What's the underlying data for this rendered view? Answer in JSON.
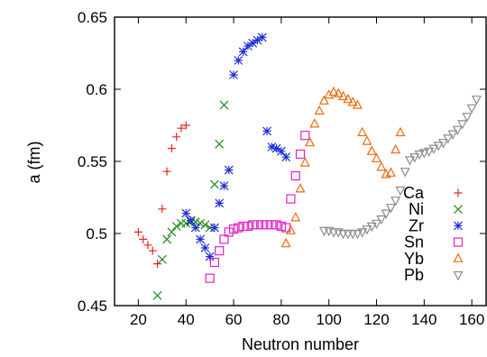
{
  "chart_data": {
    "type": "scatter",
    "xlabel": "Neutron number",
    "ylabel": "a (fm)",
    "xlim": [
      10,
      166
    ],
    "ylim": [
      0.45,
      0.65
    ],
    "x_ticks": [
      20,
      40,
      60,
      80,
      100,
      120,
      140,
      160
    ],
    "y_ticks": [
      0.45,
      0.5,
      0.55,
      0.6,
      0.65
    ],
    "x_tick_labels": [
      "20",
      "40",
      "60",
      "80",
      "100",
      "120",
      "140",
      "160"
    ],
    "y_tick_labels": [
      "0.45",
      "0.5",
      "0.55",
      "0.6",
      "0.65"
    ],
    "grid": false,
    "legend_position": "right",
    "series": [
      {
        "name": "Ca",
        "color": "#e8251f",
        "marker": "plus",
        "points": [
          [
            20,
            0.501
          ],
          [
            22,
            0.496
          ],
          [
            24,
            0.492
          ],
          [
            26,
            0.488
          ],
          [
            28,
            0.479
          ],
          [
            30,
            0.517
          ],
          [
            32,
            0.543
          ],
          [
            34,
            0.559
          ],
          [
            36,
            0.567
          ],
          [
            38,
            0.573
          ],
          [
            40,
            0.575
          ]
        ]
      },
      {
        "name": "Ni",
        "color": "#1e8a1e",
        "marker": "cross",
        "points": [
          [
            28,
            0.457
          ],
          [
            30,
            0.482
          ],
          [
            32,
            0.496
          ],
          [
            34,
            0.501
          ],
          [
            36,
            0.505
          ],
          [
            38,
            0.507
          ],
          [
            40,
            0.507
          ],
          [
            42,
            0.508
          ],
          [
            44,
            0.508
          ],
          [
            46,
            0.507
          ],
          [
            48,
            0.506
          ],
          [
            50,
            0.504
          ],
          [
            52,
            0.534
          ],
          [
            54,
            0.562
          ],
          [
            56,
            0.589
          ]
        ]
      },
      {
        "name": "Zr",
        "color": "#1f2fd8",
        "marker": "star",
        "points": [
          [
            40,
            0.514
          ],
          [
            42,
            0.509
          ],
          [
            44,
            0.504
          ],
          [
            46,
            0.496
          ],
          [
            48,
            0.49
          ],
          [
            50,
            0.484
          ],
          [
            52,
            0.504
          ],
          [
            54,
            0.521
          ],
          [
            56,
            0.533
          ],
          [
            58,
            0.544
          ],
          [
            60,
            0.61
          ],
          [
            62,
            0.62
          ],
          [
            64,
            0.626
          ],
          [
            66,
            0.63
          ],
          [
            68,
            0.632
          ],
          [
            70,
            0.634
          ],
          [
            72,
            0.636
          ],
          [
            74,
            0.571
          ],
          [
            76,
            0.56
          ],
          [
            78,
            0.559
          ],
          [
            80,
            0.557
          ],
          [
            82,
            0.553
          ]
        ]
      },
      {
        "name": "Sn",
        "color": "#e020c8",
        "marker": "square",
        "points": [
          [
            50,
            0.469
          ],
          [
            52,
            0.48
          ],
          [
            54,
            0.488
          ],
          [
            56,
            0.496
          ],
          [
            58,
            0.501
          ],
          [
            60,
            0.503
          ],
          [
            62,
            0.504
          ],
          [
            64,
            0.505
          ],
          [
            66,
            0.505
          ],
          [
            68,
            0.506
          ],
          [
            70,
            0.506
          ],
          [
            72,
            0.506
          ],
          [
            74,
            0.506
          ],
          [
            76,
            0.506
          ],
          [
            78,
            0.506
          ],
          [
            80,
            0.505
          ],
          [
            82,
            0.504
          ],
          [
            84,
            0.524
          ],
          [
            86,
            0.54
          ],
          [
            88,
            0.555
          ],
          [
            90,
            0.568
          ]
        ]
      },
      {
        "name": "Yb",
        "color": "#ee6a10",
        "marker": "triangle-up",
        "points": [
          [
            82,
            0.493
          ],
          [
            84,
            0.502
          ],
          [
            86,
            0.511
          ],
          [
            88,
            0.531
          ],
          [
            90,
            0.549
          ],
          [
            92,
            0.563
          ],
          [
            94,
            0.576
          ],
          [
            96,
            0.585
          ],
          [
            98,
            0.592
          ],
          [
            100,
            0.596
          ],
          [
            102,
            0.598
          ],
          [
            104,
            0.597
          ],
          [
            106,
            0.595
          ],
          [
            108,
            0.593
          ],
          [
            110,
            0.591
          ],
          [
            112,
            0.589
          ],
          [
            114,
            0.57
          ],
          [
            116,
            0.564
          ],
          [
            118,
            0.557
          ],
          [
            120,
            0.552
          ],
          [
            122,
            0.546
          ],
          [
            124,
            0.541
          ],
          [
            126,
            0.542
          ],
          [
            128,
            0.558
          ],
          [
            130,
            0.57
          ]
        ]
      },
      {
        "name": "Pb",
        "color": "#8c8c8c",
        "marker": "triangle-down",
        "points": [
          [
            98,
            0.502
          ],
          [
            100,
            0.502
          ],
          [
            102,
            0.501
          ],
          [
            104,
            0.501
          ],
          [
            106,
            0.5
          ],
          [
            108,
            0.5
          ],
          [
            110,
            0.5
          ],
          [
            112,
            0.5
          ],
          [
            114,
            0.501
          ],
          [
            116,
            0.503
          ],
          [
            118,
            0.505
          ],
          [
            120,
            0.507
          ],
          [
            122,
            0.51
          ],
          [
            124,
            0.514
          ],
          [
            126,
            0.518
          ],
          [
            128,
            0.523
          ],
          [
            130,
            0.53
          ],
          [
            132,
            0.543
          ],
          [
            134,
            0.551
          ],
          [
            136,
            0.553
          ],
          [
            138,
            0.555
          ],
          [
            140,
            0.556
          ],
          [
            142,
            0.557
          ],
          [
            144,
            0.559
          ],
          [
            146,
            0.561
          ],
          [
            148,
            0.563
          ],
          [
            150,
            0.566
          ],
          [
            152,
            0.569
          ],
          [
            154,
            0.572
          ],
          [
            156,
            0.576
          ],
          [
            158,
            0.581
          ],
          [
            160,
            0.587
          ],
          [
            162,
            0.593
          ]
        ]
      }
    ]
  }
}
